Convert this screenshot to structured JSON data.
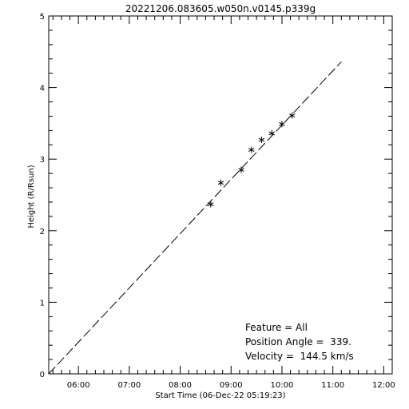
{
  "chart_data": {
    "type": "scatter",
    "title": "20221206.083605.w050n.v0145.p339g",
    "xlabel": "Start Time (06-Dec-22 05:19:23)",
    "ylabel": "Height (R/Rsun)",
    "xlim": [
      "05:25",
      "12:10"
    ],
    "ylim": [
      0,
      5
    ],
    "x_ticks": [
      "06:00",
      "07:00",
      "08:00",
      "09:00",
      "10:00",
      "11:00",
      "12:00"
    ],
    "y_ticks": [
      "0",
      "1",
      "2",
      "3",
      "4",
      "5"
    ],
    "grid": false,
    "series": [
      {
        "marker": "asterisk",
        "points": [
          {
            "x": "08:36",
            "y": 2.37
          },
          {
            "x": "08:48",
            "y": 2.67
          },
          {
            "x": "09:12",
            "y": 2.85
          },
          {
            "x": "09:24",
            "y": 3.13
          },
          {
            "x": "09:36",
            "y": 3.27
          },
          {
            "x": "09:48",
            "y": 3.36
          },
          {
            "x": "10:00",
            "y": 3.49
          },
          {
            "x": "10:12",
            "y": 3.61
          }
        ]
      }
    ],
    "fit_line": {
      "style": "dashed",
      "points": [
        {
          "x": "05:25",
          "y": 0.0
        },
        {
          "x": "11:10",
          "y": 4.36
        }
      ]
    },
    "annotations": [
      "Feature = All",
      "Position Angle =  339.",
      "Velocity =  144.5 km/s"
    ]
  }
}
